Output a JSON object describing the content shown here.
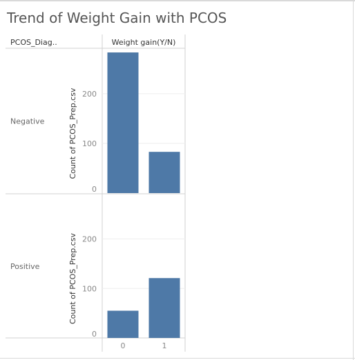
{
  "title": "Trend of Weight Gain with PCOS",
  "chart_data": {
    "type": "bar",
    "title": "Trend of Weight Gain with PCOS",
    "row_header": "PCOS_Diag..",
    "column_header": "Weight gain(Y/N)",
    "ylabel": "Count of PCOS_Prep.csv",
    "categories": [
      "0",
      "1"
    ],
    "ylim": [
      0,
      290
    ],
    "yticks": [
      0,
      100,
      200
    ],
    "grid": true,
    "panels": [
      {
        "name": "Negative",
        "values": [
          283,
          83
        ]
      },
      {
        "name": "Positive",
        "values": [
          55,
          121
        ]
      }
    ],
    "colors": {
      "bar": "#4e79a7"
    }
  }
}
